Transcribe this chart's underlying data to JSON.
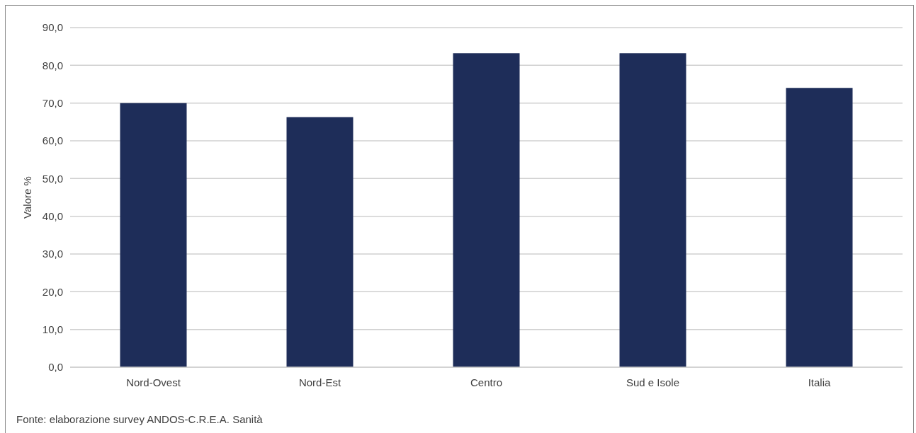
{
  "chart_data": {
    "type": "bar",
    "categories": [
      "Nord-Ovest",
      "Nord-Est",
      "Centro",
      "Sud e Isole",
      "Italia"
    ],
    "values": [
      70.0,
      66.3,
      83.2,
      83.2,
      74.0
    ],
    "color": "#1e2d59",
    "ylabel": "Valore %",
    "ylim": [
      0,
      90
    ],
    "yticks": [
      {
        "value": 0,
        "label": "0,0"
      },
      {
        "value": 10,
        "label": "10,0"
      },
      {
        "value": 20,
        "label": "20,0"
      },
      {
        "value": 30,
        "label": "30,0"
      },
      {
        "value": 40,
        "label": "40,0"
      },
      {
        "value": 50,
        "label": "50,0"
      },
      {
        "value": 60,
        "label": "60,0"
      },
      {
        "value": 70,
        "label": "70,0"
      },
      {
        "value": 80,
        "label": "80,0"
      },
      {
        "value": 90,
        "label": "90,0"
      }
    ],
    "grid": "y",
    "annotations": [
      "Fonte: elaborazione survey ANDOS-C.R.E.A. Sanità"
    ]
  }
}
